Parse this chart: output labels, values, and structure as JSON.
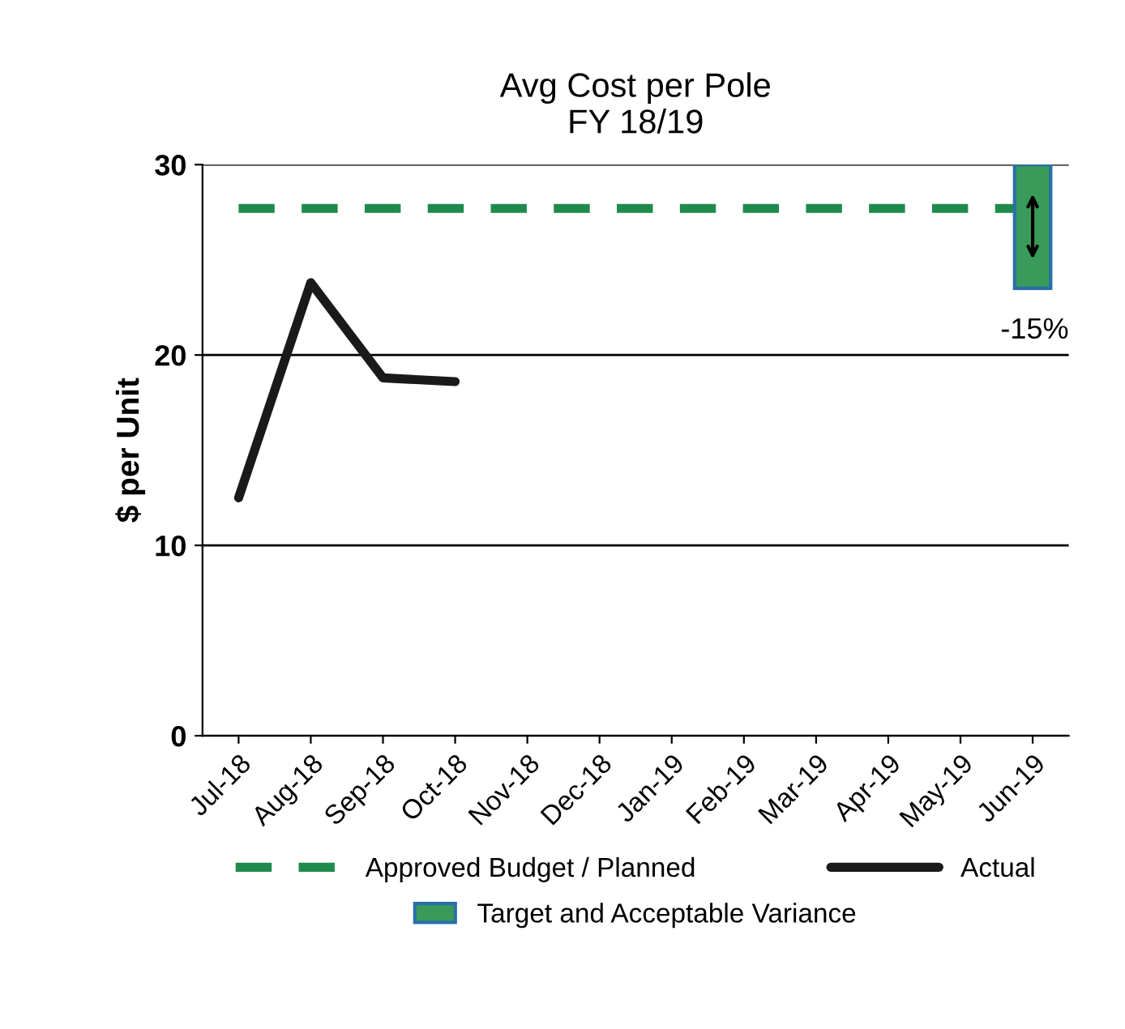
{
  "chart_data": {
    "type": "line",
    "title": "Avg Cost per Pole\nFY 18/19",
    "ylabel": "$ per Unit",
    "categories": [
      "Jul-18",
      "Aug-18",
      "Sep-18",
      "Oct-18",
      "Nov-18",
      "Dec-18",
      "Jan-19",
      "Feb-19",
      "Mar-19",
      "Apr-19",
      "May-19",
      "Jun-19"
    ],
    "series": [
      {
        "name": "Approved Budget / Planned",
        "color": "#1f8a4c",
        "line_style": "dashed",
        "values": [
          27.7,
          27.7,
          27.7,
          27.7,
          27.7,
          27.7,
          27.7,
          27.7,
          27.7,
          27.7,
          27.7,
          27.7
        ]
      },
      {
        "name": "Actual",
        "color": "#1a1a1a",
        "line_style": "solid",
        "values": [
          12.5,
          23.8,
          18.8,
          18.6,
          null,
          null,
          null,
          null,
          null,
          null,
          null,
          null
        ]
      },
      {
        "name": "Target and Acceptable Variance",
        "type": "bar",
        "color": "#3a9a5a",
        "values": [
          null,
          null,
          null,
          null,
          null,
          null,
          null,
          null,
          null,
          null,
          null,
          6.5
        ],
        "base": [
          null,
          null,
          null,
          null,
          null,
          null,
          null,
          null,
          null,
          null,
          null,
          23.5
        ]
      }
    ],
    "annotations": [
      "-15%"
    ],
    "ylim": [
      0,
      30
    ],
    "yticks": [
      0,
      10,
      20,
      30
    ],
    "grid": "y",
    "legend": "bottom"
  }
}
